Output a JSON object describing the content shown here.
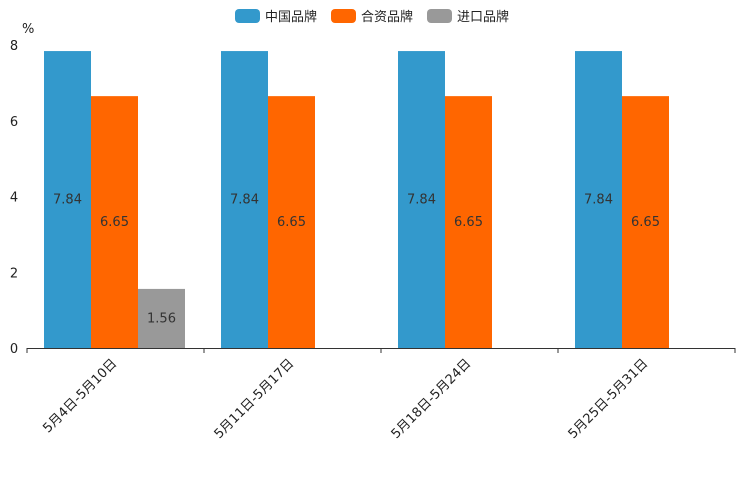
{
  "chart_data": {
    "type": "bar",
    "title": "",
    "xlabel": "",
    "ylabel": "%",
    "ylim": [
      0,
      8
    ],
    "yticks": [
      0,
      2,
      4,
      6,
      8
    ],
    "categories": [
      "5月4日-5月10日",
      "5月11日-5月17日",
      "5月18日-5月24日",
      "5月25日-5月31日"
    ],
    "series": [
      {
        "name": "中国品牌",
        "color": "#3399cc",
        "values": [
          7.84,
          7.84,
          7.84,
          7.84
        ]
      },
      {
        "name": "合资品牌",
        "color": "#ff6600",
        "values": [
          6.65,
          6.65,
          6.65,
          6.65
        ]
      },
      {
        "name": "进口品牌",
        "color": "#999999",
        "values": [
          1.56,
          null,
          null,
          null
        ]
      }
    ],
    "legend_position": "top-center"
  }
}
